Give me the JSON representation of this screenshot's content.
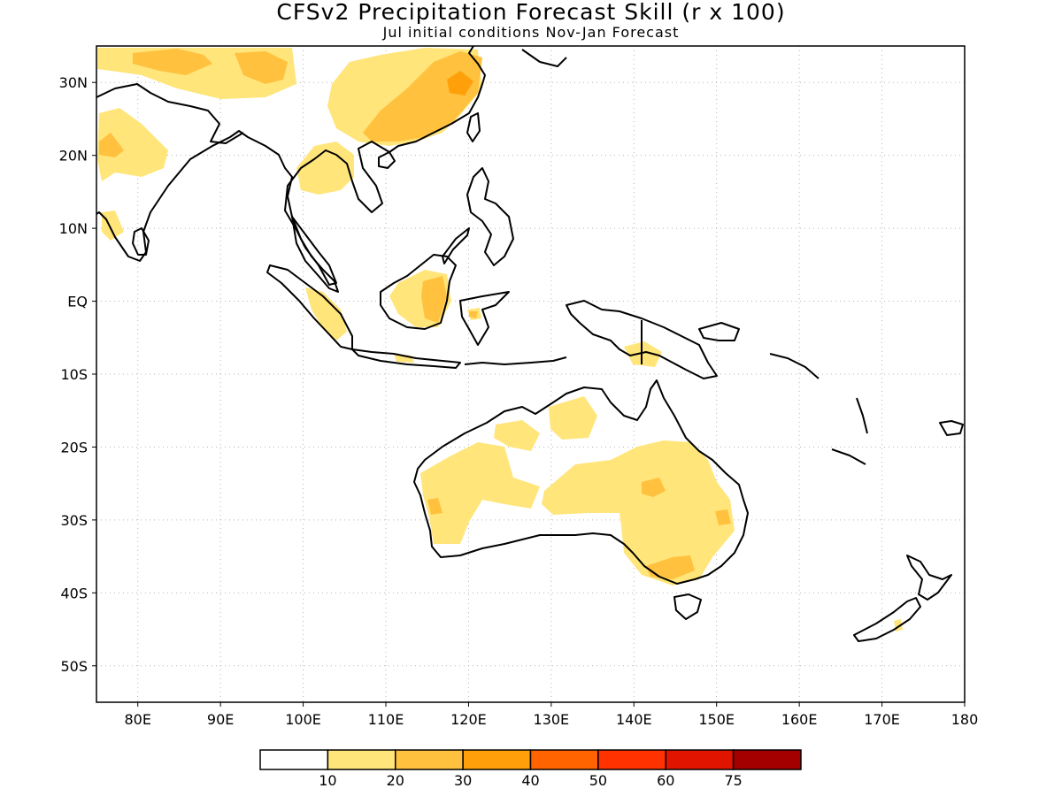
{
  "title": "CFSv2 Precipitation Forecast Skill (r x 100)",
  "subtitle": "Jul initial conditions   Nov-Jan Forecast",
  "map": {
    "lon_range": [
      75,
      180
    ],
    "lat_range": [
      -55,
      35
    ],
    "lon_ticks": [
      {
        "v": 80,
        "label": "80E"
      },
      {
        "v": 90,
        "label": "90E"
      },
      {
        "v": 100,
        "label": "100E"
      },
      {
        "v": 110,
        "label": "110E"
      },
      {
        "v": 120,
        "label": "120E"
      },
      {
        "v": 130,
        "label": "130E"
      },
      {
        "v": 140,
        "label": "140E"
      },
      {
        "v": 150,
        "label": "150E"
      },
      {
        "v": 160,
        "label": "160E"
      },
      {
        "v": 170,
        "label": "170E"
      },
      {
        "v": 180,
        "label": "180"
      }
    ],
    "lat_ticks": [
      {
        "v": 30,
        "label": "30N"
      },
      {
        "v": 20,
        "label": "20N"
      },
      {
        "v": 10,
        "label": "10N"
      },
      {
        "v": 0,
        "label": "EQ"
      },
      {
        "v": -10,
        "label": "10S"
      },
      {
        "v": -20,
        "label": "20S"
      },
      {
        "v": -30,
        "label": "30S"
      },
      {
        "v": -40,
        "label": "40S"
      },
      {
        "v": -50,
        "label": "50S"
      }
    ]
  },
  "legend": {
    "colors": [
      "#ffffff",
      "#ffe57a",
      "#ffc13e",
      "#ffa00a",
      "#ff6400",
      "#ff3200",
      "#e11400",
      "#a50000"
    ],
    "labels": [
      "10",
      "20",
      "30",
      "40",
      "50",
      "60",
      "75"
    ]
  }
}
